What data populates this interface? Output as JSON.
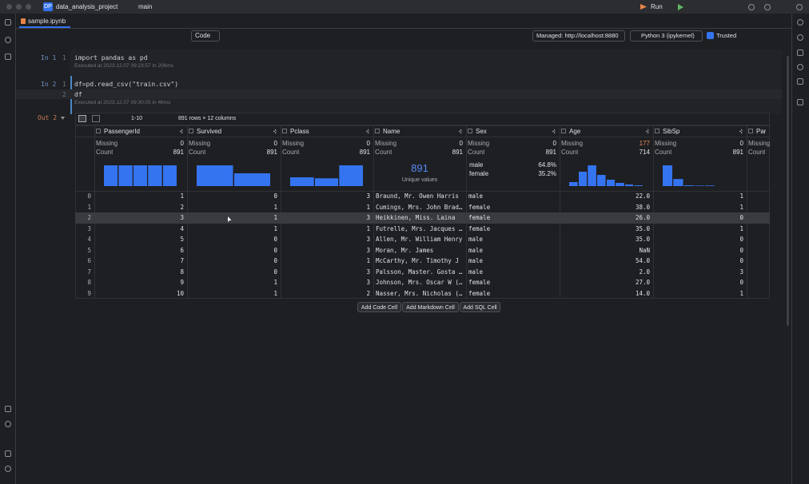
{
  "window": {
    "badge": "DP",
    "project": "data_analysis_project",
    "branch": "main",
    "run": "Run"
  },
  "tab": "sample.ipynb",
  "toolbar": {
    "cell_type": "Code",
    "server": "Managed: http://localhost:8880",
    "kernel": "Python 3 (ipykernel)",
    "trusted": "Trusted"
  },
  "cells": [
    {
      "prompt": "In 1",
      "lines": [
        {
          "number": "1",
          "code": "import pandas as pd"
        }
      ],
      "status": "Executed at 2023.12.07 09:23:57 in 206ms"
    },
    {
      "prompt": "In 2",
      "lines": [
        {
          "number": "1",
          "code": "df=pd.read_csv(\"train.csv\")"
        },
        {
          "number": "2",
          "code": "df"
        }
      ],
      "status": "Executed at 2023.12.07 09:30:05 in 46ms"
    }
  ],
  "output": {
    "prompt": "Out 2",
    "page": "1-10",
    "shape": "891 rows × 12 columns",
    "missing_label": "Missing",
    "count_label": "Count",
    "columns": [
      {
        "name": "PassengerId",
        "missing": "0",
        "count": "891",
        "hist": [
          1,
          1,
          1,
          1,
          1
        ]
      },
      {
        "name": "Survived",
        "missing": "0",
        "count": "891",
        "hist": [
          549,
          342
        ]
      },
      {
        "name": "Pclass",
        "missing": "0",
        "count": "891",
        "hist": [
          216,
          184,
          491
        ]
      },
      {
        "name": "Name",
        "missing": "0",
        "count": "891",
        "unique": "891",
        "unique_label": "Unique values"
      },
      {
        "name": "Sex",
        "missing": "0",
        "count": "891",
        "categories": [
          {
            "label": "male",
            "share": "64.8%"
          },
          {
            "label": "female",
            "share": "35.2%"
          }
        ]
      },
      {
        "name": "Age",
        "missing": "177",
        "count": "714",
        "hist": [
          5,
          18,
          26,
          14,
          8,
          4,
          2,
          1
        ]
      },
      {
        "name": "SibSp",
        "missing": "0",
        "count": "891",
        "hist": [
          608,
          209,
          28,
          16,
          18,
          5,
          7
        ]
      },
      {
        "name": "Par"
      }
    ],
    "rows": [
      {
        "index": "0",
        "cells": [
          "1",
          "0",
          "3",
          "Braund, Mr. Owen Harris",
          "male",
          "22.0",
          "1"
        ]
      },
      {
        "index": "1",
        "cells": [
          "2",
          "1",
          "1",
          "Cumings, Mrs. John Brad…",
          "female",
          "38.0",
          "1"
        ]
      },
      {
        "index": "2",
        "cells": [
          "3",
          "1",
          "3",
          "Heikkinen, Miss. Laina",
          "female",
          "26.0",
          "0"
        ]
      },
      {
        "index": "3",
        "cells": [
          "4",
          "1",
          "1",
          "Futrelle, Mrs. Jacques …",
          "female",
          "35.0",
          "1"
        ]
      },
      {
        "index": "4",
        "cells": [
          "5",
          "0",
          "3",
          "Allen, Mr. William Henry",
          "male",
          "35.0",
          "0"
        ]
      },
      {
        "index": "5",
        "cells": [
          "6",
          "0",
          "3",
          "Moran, Mr. James",
          "male",
          "NaN",
          "0"
        ]
      },
      {
        "index": "6",
        "cells": [
          "7",
          "0",
          "1",
          "McCarthy, Mr. Timothy J",
          "male",
          "54.0",
          "0"
        ]
      },
      {
        "index": "7",
        "cells": [
          "8",
          "0",
          "3",
          "Palsson, Master. Gosta …",
          "male",
          "2.0",
          "3"
        ]
      },
      {
        "index": "8",
        "cells": [
          "9",
          "1",
          "3",
          "Johnson, Mrs. Oscar W (…",
          "female",
          "27.0",
          "0"
        ]
      },
      {
        "index": "9",
        "cells": [
          "10",
          "1",
          "2",
          "Nasser, Mrs. Nicholas (…",
          "female",
          "14.0",
          "1"
        ]
      }
    ],
    "selected_row": 2
  },
  "actions": [
    "Add Code Cell",
    "Add Markdown Cell",
    "Add SQL Cell"
  ]
}
